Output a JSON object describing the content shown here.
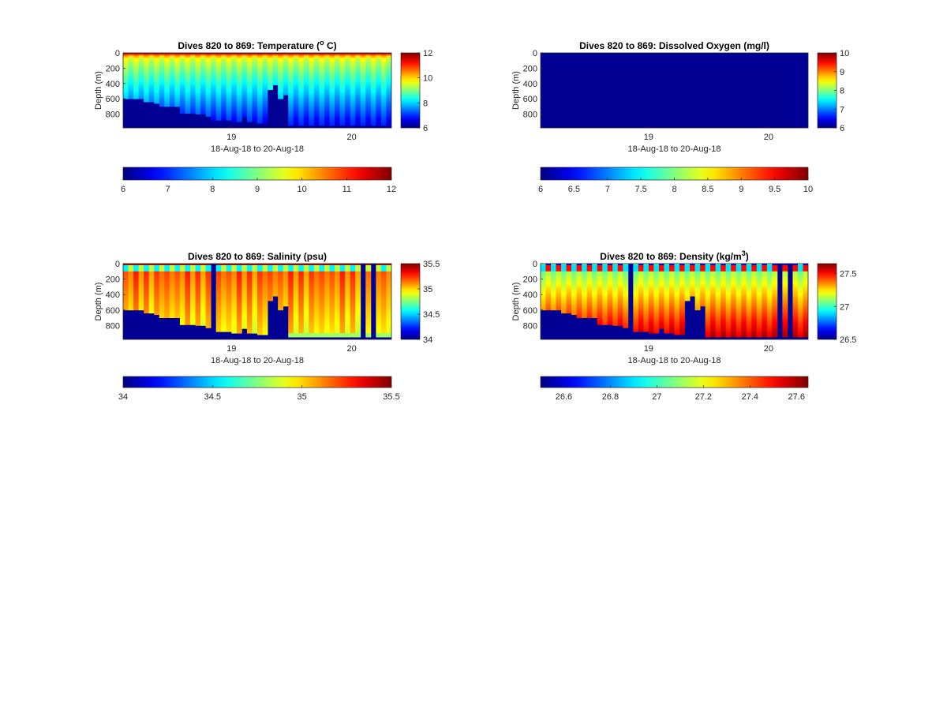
{
  "chart_data": [
    {
      "type": "heatmap",
      "title": "Dives 820 to 869: Temperature (° C)",
      "title_parts": {
        "before": "Dives 820 to 869: Temperature (",
        "sup": "o",
        "after": " C)"
      },
      "xlabel": "18-Aug-18 to 20-Aug-18",
      "ylabel": "Depth (m)",
      "x_ticks": [
        "19",
        "20"
      ],
      "x_tick_values": [
        19,
        20
      ],
      "xlim": [
        18.1,
        20.33
      ],
      "y_ticks": [
        "0",
        "200",
        "400",
        "600",
        "800"
      ],
      "ylim": [
        0,
        980
      ],
      "y_reversed": true,
      "colormap": "jet",
      "clim": [
        6,
        12
      ],
      "colorbar_side_ticks": [
        "6",
        "8",
        "10",
        "12"
      ],
      "colorbar_bottom_ticks": [
        "6",
        "7",
        "8",
        "9",
        "10",
        "11",
        "12"
      ],
      "mode": "temperature",
      "bottom_floor": [
        {
          "x_start": 18.1,
          "x_end": 18.27,
          "depth": 600
        },
        {
          "x_start": 18.27,
          "x_end": 18.35,
          "depth": 640
        },
        {
          "x_start": 18.35,
          "x_end": 18.41,
          "depth": 660
        },
        {
          "x_start": 18.41,
          "x_end": 18.56,
          "depth": 700
        },
        {
          "x_start": 18.56,
          "x_end": 18.71,
          "depth": 790
        },
        {
          "x_start": 18.71,
          "x_end": 18.79,
          "depth": 800
        },
        {
          "x_start": 18.79,
          "x_end": 18.84,
          "depth": 830
        },
        {
          "x_start": 18.84,
          "x_end": 18.98,
          "depth": 880
        },
        {
          "x_start": 18.98,
          "x_end": 19.1,
          "depth": 900
        },
        {
          "x_start": 19.1,
          "x_end": 19.14,
          "depth": 840
        },
        {
          "x_start": 19.14,
          "x_end": 19.23,
          "depth": 900
        },
        {
          "x_start": 19.23,
          "x_end": 19.3,
          "depth": 920
        },
        {
          "x_start": 19.3,
          "x_end": 19.34,
          "depth": 480
        },
        {
          "x_start": 19.34,
          "x_end": 19.39,
          "depth": 420
        },
        {
          "x_start": 19.39,
          "x_end": 19.43,
          "depth": 600
        },
        {
          "x_start": 19.43,
          "x_end": 19.47,
          "depth": 550
        },
        {
          "x_start": 19.47,
          "x_end": 20.33,
          "depth": 950
        }
      ]
    },
    {
      "type": "heatmap",
      "title": "Dives 820 to 869: Dissolved Oxygen (mg/l)",
      "xlabel": "18-Aug-18 to 20-Aug-18",
      "ylabel": "Depth (m)",
      "x_ticks": [
        "19",
        "20"
      ],
      "x_tick_values": [
        19,
        20
      ],
      "xlim": [
        18.1,
        20.33
      ],
      "y_ticks": [
        "0",
        "200",
        "400",
        "600",
        "800"
      ],
      "ylim": [
        0,
        980
      ],
      "y_reversed": true,
      "colormap": "jet",
      "clim": [
        6,
        10
      ],
      "colorbar_side_ticks": [
        "6",
        "7",
        "8",
        "9",
        "10"
      ],
      "colorbar_bottom_ticks": [
        "6",
        "6.5",
        "7",
        "7.5",
        "8",
        "8.5",
        "9",
        "9.5",
        "10"
      ],
      "mode": "empty"
    },
    {
      "type": "heatmap",
      "title": "Dives 820 to 869: Salinity (psu)",
      "xlabel": "18-Aug-18 to 20-Aug-18",
      "ylabel": "Depth (m)",
      "x_ticks": [
        "19",
        "20"
      ],
      "x_tick_values": [
        19,
        20
      ],
      "xlim": [
        18.1,
        20.33
      ],
      "y_ticks": [
        "0",
        "200",
        "400",
        "600",
        "800"
      ],
      "ylim": [
        0,
        980
      ],
      "y_reversed": true,
      "colormap": "jet",
      "clim": [
        34,
        35.5
      ],
      "colorbar_side_ticks": [
        "34",
        "34.5",
        "35",
        "35.5"
      ],
      "colorbar_bottom_ticks": [
        "34",
        "34.5",
        "35",
        "35.5"
      ],
      "mode": "salinity",
      "gaps": [
        [
          18.82,
          18.86
        ],
        [
          20.07,
          20.13
        ],
        [
          20.17,
          20.21
        ]
      ],
      "bottom_floor": [
        {
          "x_start": 18.1,
          "x_end": 18.27,
          "depth": 600
        },
        {
          "x_start": 18.27,
          "x_end": 18.35,
          "depth": 640
        },
        {
          "x_start": 18.35,
          "x_end": 18.41,
          "depth": 660
        },
        {
          "x_start": 18.41,
          "x_end": 18.56,
          "depth": 700
        },
        {
          "x_start": 18.56,
          "x_end": 18.71,
          "depth": 790
        },
        {
          "x_start": 18.71,
          "x_end": 18.79,
          "depth": 800
        },
        {
          "x_start": 18.79,
          "x_end": 18.84,
          "depth": 830
        },
        {
          "x_start": 18.84,
          "x_end": 18.98,
          "depth": 880
        },
        {
          "x_start": 18.98,
          "x_end": 19.1,
          "depth": 900
        },
        {
          "x_start": 19.1,
          "x_end": 19.14,
          "depth": 840
        },
        {
          "x_start": 19.14,
          "x_end": 19.23,
          "depth": 900
        },
        {
          "x_start": 19.23,
          "x_end": 19.3,
          "depth": 920
        },
        {
          "x_start": 19.3,
          "x_end": 19.34,
          "depth": 480
        },
        {
          "x_start": 19.34,
          "x_end": 19.39,
          "depth": 420
        },
        {
          "x_start": 19.39,
          "x_end": 19.43,
          "depth": 600
        },
        {
          "x_start": 19.43,
          "x_end": 19.47,
          "depth": 550
        },
        {
          "x_start": 19.47,
          "x_end": 20.33,
          "depth": 950
        }
      ]
    },
    {
      "type": "heatmap",
      "title": "Dives 820 to 869: Density (kg/m³)",
      "title_parts": {
        "before": "Dives 820 to 869: Density (kg/m",
        "sup": "3",
        "after": ")"
      },
      "xlabel": "18-Aug-18 to 20-Aug-18",
      "ylabel": "Depth (m)",
      "x_ticks": [
        "19",
        "20"
      ],
      "x_tick_values": [
        19,
        20
      ],
      "xlim": [
        18.1,
        20.33
      ],
      "y_ticks": [
        "0",
        "200",
        "400",
        "600",
        "800"
      ],
      "ylim": [
        0,
        980
      ],
      "y_reversed": true,
      "colormap": "jet",
      "clim": [
        26.5,
        27.65
      ],
      "colorbar_side_ticks": [
        "26.5",
        "27",
        "27.5"
      ],
      "colorbar_side_values": [
        26.5,
        27,
        27.5
      ],
      "colorbar_bottom_ticks": [
        "26.6",
        "26.8",
        "27",
        "27.2",
        "27.4",
        "27.6"
      ],
      "colorbar_bottom_values": [
        26.6,
        26.8,
        27,
        27.2,
        27.4,
        27.6
      ],
      "mode": "density",
      "gaps": [
        [
          18.82,
          18.86
        ],
        [
          20.07,
          20.13
        ],
        [
          20.17,
          20.21
        ]
      ],
      "bottom_floor": [
        {
          "x_start": 18.1,
          "x_end": 18.27,
          "depth": 600
        },
        {
          "x_start": 18.27,
          "x_end": 18.35,
          "depth": 640
        },
        {
          "x_start": 18.35,
          "x_end": 18.41,
          "depth": 660
        },
        {
          "x_start": 18.41,
          "x_end": 18.56,
          "depth": 700
        },
        {
          "x_start": 18.56,
          "x_end": 18.71,
          "depth": 790
        },
        {
          "x_start": 18.71,
          "x_end": 18.79,
          "depth": 800
        },
        {
          "x_start": 18.79,
          "x_end": 18.84,
          "depth": 830
        },
        {
          "x_start": 18.84,
          "x_end": 18.98,
          "depth": 880
        },
        {
          "x_start": 18.98,
          "x_end": 19.1,
          "depth": 900
        },
        {
          "x_start": 19.1,
          "x_end": 19.14,
          "depth": 840
        },
        {
          "x_start": 19.14,
          "x_end": 19.23,
          "depth": 900
        },
        {
          "x_start": 19.23,
          "x_end": 19.3,
          "depth": 920
        },
        {
          "x_start": 19.3,
          "x_end": 19.34,
          "depth": 480
        },
        {
          "x_start": 19.34,
          "x_end": 19.39,
          "depth": 420
        },
        {
          "x_start": 19.39,
          "x_end": 19.43,
          "depth": 600
        },
        {
          "x_start": 19.43,
          "x_end": 19.47,
          "depth": 550
        },
        {
          "x_start": 19.47,
          "x_end": 20.33,
          "depth": 950
        }
      ]
    }
  ]
}
